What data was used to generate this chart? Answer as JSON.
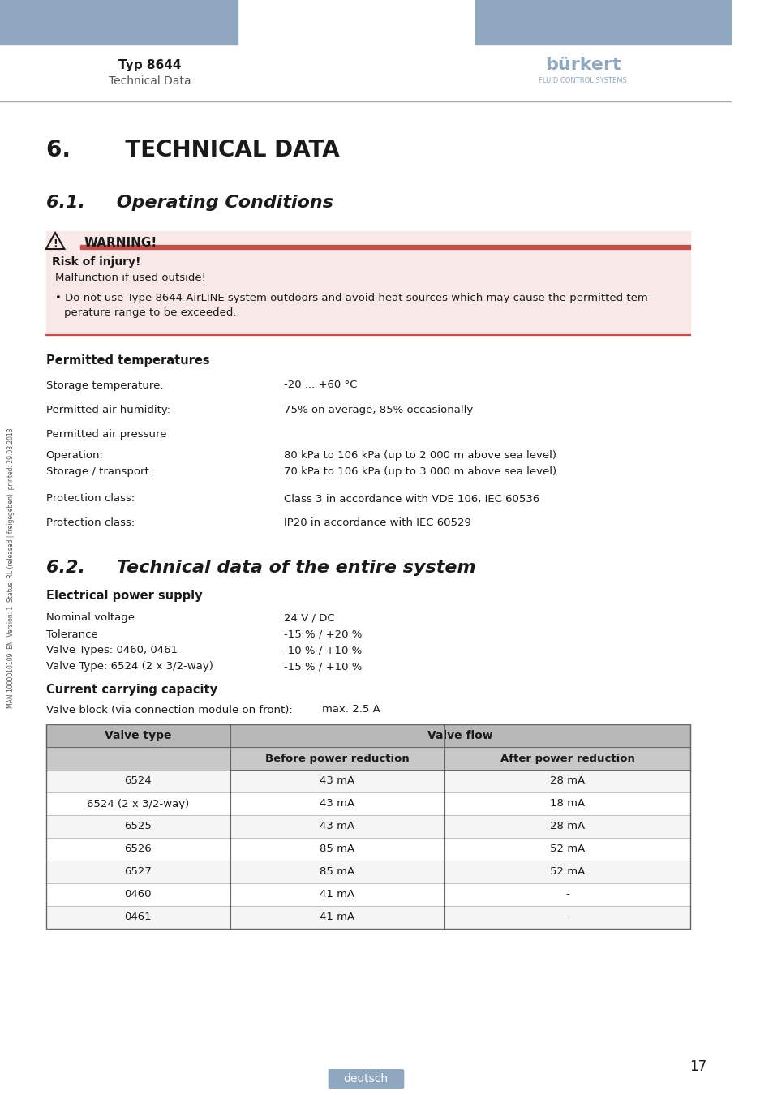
{
  "page_bg": "#ffffff",
  "header_bar_color": "#8fa8c0",
  "header_text_left": "Typ 8644",
  "header_subtext_left": "Technical Data",
  "header_divider_color": "#aaaaaa",
  "section6_title": "6.       TECHNICAL DATA",
  "section61_title": "6.1.     Operating Conditions",
  "warning_label": "WARNING!",
  "warning_bar_color": "#c0504d",
  "warning_bg_color": "#f9e8e8",
  "warning_border_color": "#c0504d",
  "risk_title": "Risk of injury!",
  "warning_line1": "Malfunction if used outside!",
  "warning_line2": "• Do not use Type 8644 AirLINE system outdoors and avoid heat sources which may cause the permitted tem-\n   perature range to be exceeded.",
  "permitted_temps_header": "Permitted temperatures",
  "storage_temp_label": "Storage temperature:",
  "storage_temp_value": "-20 ... +60 °C",
  "humidity_label": "Permitted air humidity:",
  "humidity_value": "75% on average, 85% occasionally",
  "air_pressure_label": "Permitted air pressure",
  "operation_label": "Operation:",
  "operation_value": "80 kPa to 106 kPa (up to 2 000 m above sea level)",
  "storage_transport_label": "Storage / transport:",
  "storage_transport_value": "70 kPa to 106 kPa (up to 3 000 m above sea level)",
  "protection_class1_label": "Protection class:",
  "protection_class1_value": "Class 3 in accordance with VDE 106, IEC 60536",
  "protection_class2_label": "Protection class:",
  "protection_class2_value": "IP20 in accordance with IEC 60529",
  "section62_title": "6.2.     Technical data of the entire system",
  "electrical_header": "Electrical power supply",
  "nominal_voltage_label": "Nominal voltage",
  "nominal_voltage_value": "24 V / DC",
  "tolerance_label": "Tolerance",
  "tolerance_value": "-15 % / +20 %",
  "valve_types_label": "Valve Types: 0460, 0461",
  "valve_types_value": "-10 % / +10 %",
  "valve_type_label": "Valve Type: 6524 (2 x 3/2-way)",
  "valve_type_value": "-15 % / +10 %",
  "current_header": "Current carrying capacity",
  "valve_block_label": "Valve block (via connection module on front):",
  "valve_block_value": "max. 2.5 A",
  "table_header1": "Valve type",
  "table_header2": "Valve flow",
  "table_subheader2a": "Before power reduction",
  "table_subheader2b": "After power reduction",
  "table_header_bg": "#c0c0c0",
  "table_row_bg": "#ffffff",
  "table_alt_row_bg": "#f0f0f0",
  "table_rows": [
    [
      "6524",
      "43 mA",
      "28 mA"
    ],
    [
      "6524 (2 x 3/2-way)",
      "43 mA",
      "18 mA"
    ],
    [
      "6525",
      "43 mA",
      "28 mA"
    ],
    [
      "6526",
      "85 mA",
      "52 mA"
    ],
    [
      "6527",
      "85 mA",
      "52 mA"
    ],
    [
      "0460",
      "41 mA",
      "-"
    ],
    [
      "0461",
      "41 mA",
      "-"
    ]
  ],
  "footer_page": "17",
  "footer_lang": "deutsch",
  "footer_lang_bg": "#8fa8c0",
  "side_text": "MAN 1000010109  EN  Version: 1  Status: RL (released | freigegeben)  printed: 29.08.2013",
  "text_color": "#1a1a1a",
  "label_color": "#333333"
}
